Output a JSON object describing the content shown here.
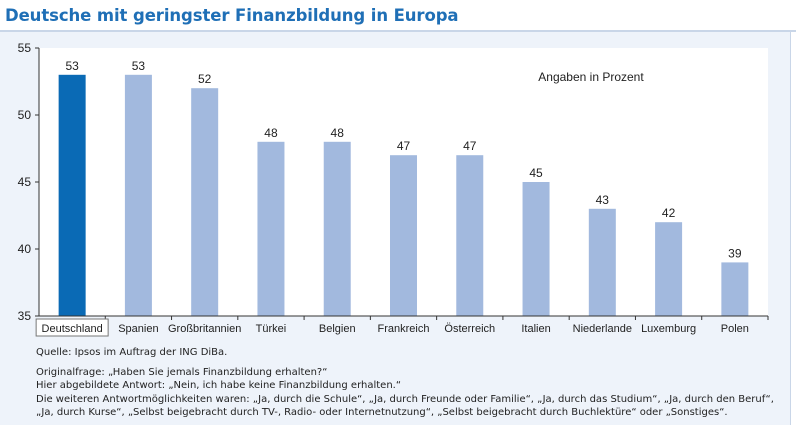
{
  "title": "Deutsche mit geringster Finanzbildung in Europa",
  "annotation": "Angaben in Prozent",
  "source": "Quelle: Ipsos im Auftrag der ING DiBa.",
  "notes": [
    "Originalfrage: „Haben Sie jemals Finanzbildung erhalten?“",
    "Hier abgebildete Antwort: „Nein, ich habe keine Finanzbildung erhalten.“",
    "Die weiteren Antwortmöglichkeiten waren: „Ja, durch die Schule“, „Ja, durch Freunde oder Familie“, „Ja, durch das Studium“, „Ja, durch den Beruf“,",
    "„Ja, durch Kurse“, „Selbst beigebracht durch TV-, Radio- oder Internetnutzung“, „Selbst beigebracht durch Buchlektüre“ oder „Sonstiges“."
  ],
  "colors": {
    "highlight": "#0a6ab5",
    "bar": "#a2b9de",
    "title": "#1f6fb6",
    "panel": "#eef3fa"
  },
  "chart_data": {
    "type": "bar",
    "title": "Deutsche mit geringster Finanzbildung in Europa",
    "xlabel": "",
    "ylabel": "",
    "categories": [
      "Deutschland",
      "Spanien",
      "Großbritannien",
      "Türkei",
      "Belgien",
      "Frankreich",
      "Österreich",
      "Italien",
      "Niederlande",
      "Luxemburg",
      "Polen"
    ],
    "values": [
      53,
      53,
      52,
      48,
      48,
      47,
      47,
      45,
      43,
      42,
      39
    ],
    "highlight_index": 0,
    "ylim": [
      35,
      55
    ],
    "yticks": [
      35,
      40,
      45,
      50,
      55
    ],
    "grid": false,
    "legend": "none"
  }
}
